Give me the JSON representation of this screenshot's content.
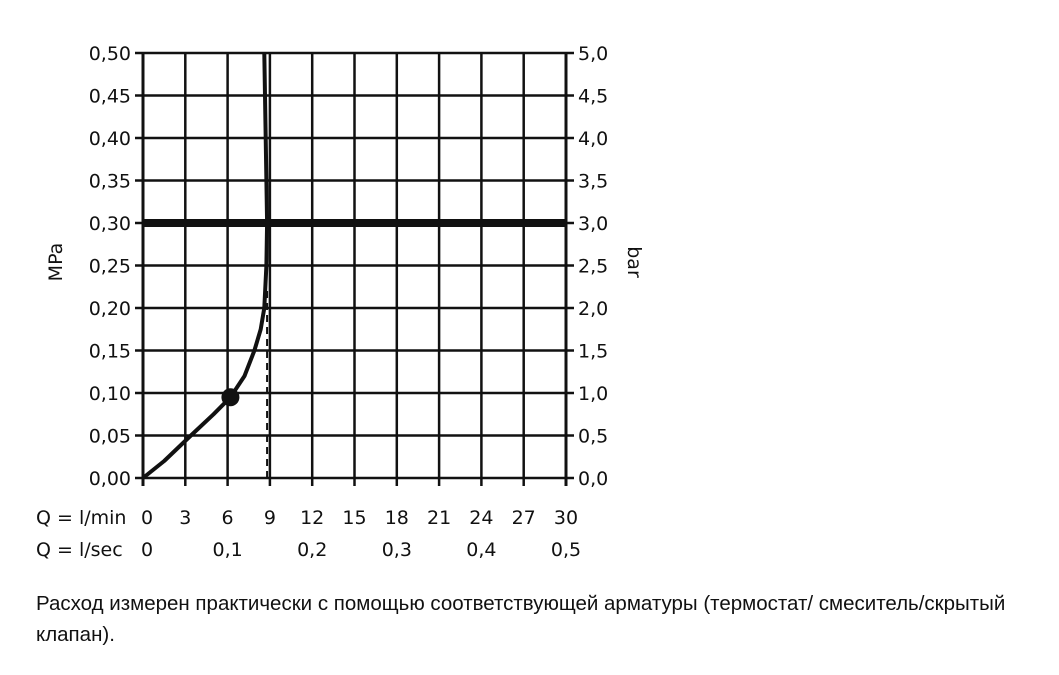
{
  "chart_data": {
    "type": "line",
    "xlabel_rows": [
      {
        "label": "Q = l/min",
        "ticks": [
          "0",
          "3",
          "6",
          "9",
          "12",
          "15",
          "18",
          "21",
          "24",
          "27",
          "30"
        ],
        "values": [
          0,
          3,
          6,
          9,
          12,
          15,
          18,
          21,
          24,
          27,
          30
        ]
      },
      {
        "label": "Q = l/sec",
        "ticks": [
          "0",
          "0,1",
          "0,2",
          "0,3",
          "0,4",
          "0,5"
        ],
        "values": [
          0,
          6,
          12,
          18,
          24,
          30
        ]
      }
    ],
    "ylabel_left": "MPa",
    "ylabel_right": "bar",
    "yticks_left": [
      "0,00",
      "0,05",
      "0,10",
      "0,15",
      "0,20",
      "0,25",
      "0,30",
      "0,35",
      "0,40",
      "0,45",
      "0,50"
    ],
    "yticks_right": [
      "0,0",
      "0,5",
      "1,0",
      "1,5",
      "2,0",
      "2,5",
      "3,0",
      "3,5",
      "4,0",
      "4,5",
      "5,0"
    ],
    "xlim": [
      0,
      30
    ],
    "ylim": [
      0,
      0.5
    ],
    "grid": true,
    "series": [
      {
        "x": [
          0,
          1.5,
          3.4,
          5,
          6.2,
          7.2,
          7.9,
          8.35,
          8.6,
          8.75,
          8.8,
          8.75,
          8.7,
          8.65,
          8.6
        ],
        "y": [
          0,
          0.02,
          0.05,
          0.075,
          0.095,
          0.12,
          0.15,
          0.175,
          0.2,
          0.25,
          0.3,
          0.35,
          0.4,
          0.45,
          0.5
        ]
      }
    ],
    "marker": {
      "x": 6.2,
      "y": 0.095
    },
    "reference_line_y": 0.3,
    "dashed_drop": {
      "x": 8.8,
      "y_top": 0.22
    },
    "colors": {
      "line": "#111111",
      "grid": "#111111"
    }
  },
  "caption": "Расход измерен практически с помощью соответствующей арматуры (термостат/ смеситель/скрытый клапан)."
}
